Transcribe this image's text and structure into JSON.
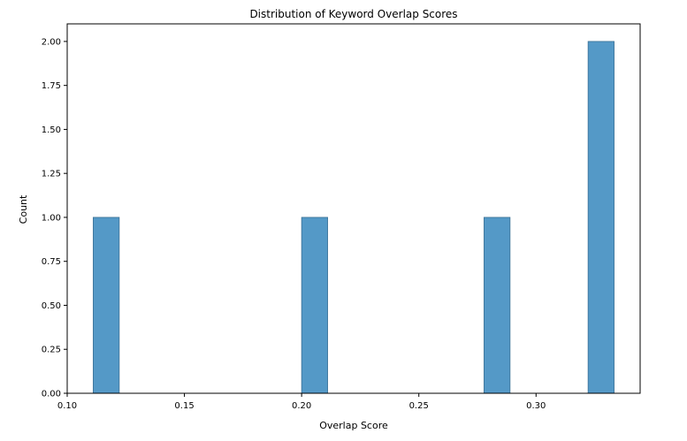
{
  "chart_data": {
    "type": "bar",
    "title": "Distribution of Keyword Overlap Scores",
    "xlabel": "Overlap Score",
    "ylabel": "Count",
    "xlim": [
      0.1,
      0.3444
    ],
    "ylim": [
      0,
      2.1
    ],
    "xticks": [
      0.1,
      0.15,
      0.2,
      0.25,
      0.3
    ],
    "xtick_labels": [
      "0.10",
      "0.15",
      "0.20",
      "0.25",
      "0.30"
    ],
    "yticks": [
      0,
      0.25,
      0.5,
      0.75,
      1.0,
      1.25,
      1.5,
      1.75,
      2.0
    ],
    "ytick_labels": [
      "0.00",
      "0.25",
      "0.50",
      "0.75",
      "1.00",
      "1.25",
      "1.50",
      "1.75",
      "2.00"
    ],
    "grid": false,
    "bars": [
      {
        "x0": 0.1111,
        "x1": 0.1222,
        "value": 1
      },
      {
        "x0": 0.2,
        "x1": 0.2111,
        "value": 1
      },
      {
        "x0": 0.2778,
        "x1": 0.2889,
        "value": 1
      },
      {
        "x0": 0.3222,
        "x1": 0.3333,
        "value": 2
      }
    ],
    "colors": {
      "bar_fill": "#5499c7",
      "bar_edge": "#3a6f94",
      "axis": "#000000"
    }
  }
}
